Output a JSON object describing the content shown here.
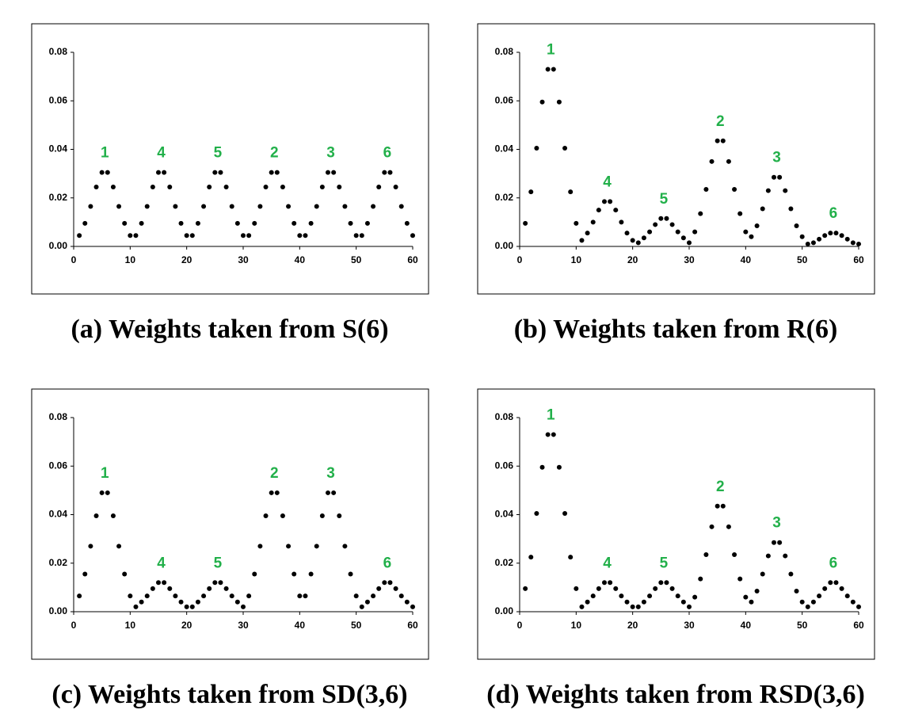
{
  "chart_data": [
    {
      "type": "scatter",
      "title": "(a) Weights taken from S(6)",
      "x": [
        1,
        2,
        3,
        4,
        5,
        6,
        7,
        8,
        9,
        10,
        11,
        12,
        13,
        14,
        15,
        16,
        17,
        18,
        19,
        20,
        21,
        22,
        23,
        24,
        25,
        26,
        27,
        28,
        29,
        30,
        31,
        32,
        33,
        34,
        35,
        36,
        37,
        38,
        39,
        40,
        41,
        42,
        43,
        44,
        45,
        46,
        47,
        48,
        49,
        50,
        51,
        52,
        53,
        54,
        55,
        56,
        57,
        58,
        59,
        60
      ],
      "values": [
        0.0045,
        0.0095,
        0.0165,
        0.0245,
        0.0305,
        0.0305,
        0.0245,
        0.0165,
        0.0095,
        0.0045,
        0.0045,
        0.0095,
        0.0165,
        0.0245,
        0.0305,
        0.0305,
        0.0245,
        0.0165,
        0.0095,
        0.0045,
        0.0045,
        0.0095,
        0.0165,
        0.0245,
        0.0305,
        0.0305,
        0.0245,
        0.0165,
        0.0095,
        0.0045,
        0.0045,
        0.0095,
        0.0165,
        0.0245,
        0.0305,
        0.0305,
        0.0245,
        0.0165,
        0.0095,
        0.0045,
        0.0045,
        0.0095,
        0.0165,
        0.0245,
        0.0305,
        0.0305,
        0.0245,
        0.0165,
        0.0095,
        0.0045,
        0.0045,
        0.0095,
        0.0165,
        0.0245,
        0.0305,
        0.0305,
        0.0245,
        0.0165,
        0.0095,
        0.0045
      ],
      "color": "#000000",
      "annotations": [
        "1",
        "4",
        "5",
        "2",
        "3",
        "6"
      ],
      "annotation_color": "#22b04a",
      "xlim": [
        0,
        60
      ],
      "xticks": [
        0,
        10,
        20,
        30,
        40,
        50,
        60
      ],
      "ylim": [
        0,
        0.08
      ],
      "yticks": [
        {
          "value": 0,
          "label": "0.00"
        },
        0.02,
        0.04,
        0.06,
        0.08
      ]
    },
    {
      "type": "scatter",
      "title": "(b) Weights taken from R(6)",
      "x": [
        1,
        2,
        3,
        4,
        5,
        6,
        7,
        8,
        9,
        10,
        11,
        12,
        13,
        14,
        15,
        16,
        17,
        18,
        19,
        20,
        21,
        22,
        23,
        24,
        25,
        26,
        27,
        28,
        29,
        30,
        31,
        32,
        33,
        34,
        35,
        36,
        37,
        38,
        39,
        40,
        41,
        42,
        43,
        44,
        45,
        46,
        47,
        48,
        49,
        50,
        51,
        52,
        53,
        54,
        55,
        56,
        57,
        58,
        59,
        60
      ],
      "values": [
        0.0095,
        0.0225,
        0.0405,
        0.0595,
        0.073,
        0.073,
        0.0595,
        0.0405,
        0.0225,
        0.0095,
        0.0025,
        0.0055,
        0.01,
        0.015,
        0.0185,
        0.0185,
        0.015,
        0.01,
        0.0055,
        0.0025,
        0.0015,
        0.0035,
        0.006,
        0.009,
        0.0115,
        0.0115,
        0.009,
        0.006,
        0.0035,
        0.0015,
        0.006,
        0.0135,
        0.0235,
        0.035,
        0.0435,
        0.0435,
        0.035,
        0.0235,
        0.0135,
        0.006,
        0.004,
        0.0085,
        0.0155,
        0.023,
        0.0285,
        0.0285,
        0.023,
        0.0155,
        0.0085,
        0.004,
        0.001,
        0.0015,
        0.003,
        0.0045,
        0.0055,
        0.0055,
        0.0045,
        0.003,
        0.0015,
        0.001
      ],
      "color": "#000000",
      "annotations": [
        "1",
        "4",
        "5",
        "2",
        "3",
        "6"
      ],
      "annotation_color": "#22b04a",
      "xlim": [
        0,
        60
      ],
      "xticks": [
        0,
        10,
        20,
        30,
        40,
        50,
        60
      ],
      "ylim": [
        0,
        0.08
      ],
      "yticks": [
        {
          "value": 0,
          "label": "0.00"
        },
        0.02,
        0.04,
        0.06,
        0.08
      ]
    },
    {
      "type": "scatter",
      "title": "(c) Weights taken from SD(3,6)",
      "x": [
        1,
        2,
        3,
        4,
        5,
        6,
        7,
        8,
        9,
        10,
        11,
        12,
        13,
        14,
        15,
        16,
        17,
        18,
        19,
        20,
        21,
        22,
        23,
        24,
        25,
        26,
        27,
        28,
        29,
        30,
        31,
        32,
        33,
        34,
        35,
        36,
        37,
        38,
        39,
        40,
        41,
        42,
        43,
        44,
        45,
        46,
        47,
        48,
        49,
        50,
        51,
        52,
        53,
        54,
        55,
        56,
        57,
        58,
        59,
        60
      ],
      "values": [
        0.0065,
        0.0155,
        0.027,
        0.0395,
        0.049,
        0.049,
        0.0395,
        0.027,
        0.0155,
        0.0065,
        0.002,
        0.004,
        0.0065,
        0.0095,
        0.012,
        0.012,
        0.0095,
        0.0065,
        0.004,
        0.002,
        0.002,
        0.004,
        0.0065,
        0.0095,
        0.012,
        0.012,
        0.0095,
        0.0065,
        0.004,
        0.002,
        0.0065,
        0.0155,
        0.027,
        0.0395,
        0.049,
        0.049,
        0.0395,
        0.027,
        0.0155,
        0.0065,
        0.0065,
        0.0155,
        0.027,
        0.0395,
        0.049,
        0.049,
        0.0395,
        0.027,
        0.0155,
        0.0065,
        0.002,
        0.004,
        0.0065,
        0.0095,
        0.012,
        0.012,
        0.0095,
        0.0065,
        0.004,
        0.002
      ],
      "color": "#000000",
      "annotations": [
        "1",
        "4",
        "5",
        "2",
        "3",
        "6"
      ],
      "annotation_color": "#22b04a",
      "xlim": [
        0,
        60
      ],
      "xticks": [
        0,
        10,
        20,
        30,
        40,
        50,
        60
      ],
      "ylim": [
        0,
        0.08
      ],
      "yticks": [
        {
          "value": 0,
          "label": "0.00"
        },
        0.02,
        0.04,
        0.06,
        0.08
      ]
    },
    {
      "type": "scatter",
      "title": "(d) Weights taken from RSD(3,6)",
      "x": [
        1,
        2,
        3,
        4,
        5,
        6,
        7,
        8,
        9,
        10,
        11,
        12,
        13,
        14,
        15,
        16,
        17,
        18,
        19,
        20,
        21,
        22,
        23,
        24,
        25,
        26,
        27,
        28,
        29,
        30,
        31,
        32,
        33,
        34,
        35,
        36,
        37,
        38,
        39,
        40,
        41,
        42,
        43,
        44,
        45,
        46,
        47,
        48,
        49,
        50,
        51,
        52,
        53,
        54,
        55,
        56,
        57,
        58,
        59,
        60
      ],
      "values": [
        0.0095,
        0.0225,
        0.0405,
        0.0595,
        0.073,
        0.073,
        0.0595,
        0.0405,
        0.0225,
        0.0095,
        0.002,
        0.004,
        0.0065,
        0.0095,
        0.012,
        0.012,
        0.0095,
        0.0065,
        0.004,
        0.002,
        0.002,
        0.004,
        0.0065,
        0.0095,
        0.012,
        0.012,
        0.0095,
        0.0065,
        0.004,
        0.002,
        0.006,
        0.0135,
        0.0235,
        0.035,
        0.0435,
        0.0435,
        0.035,
        0.0235,
        0.0135,
        0.006,
        0.004,
        0.0085,
        0.0155,
        0.023,
        0.0285,
        0.0285,
        0.023,
        0.0155,
        0.0085,
        0.004,
        0.002,
        0.004,
        0.0065,
        0.0095,
        0.012,
        0.012,
        0.0095,
        0.0065,
        0.004,
        0.002
      ],
      "color": "#000000",
      "annotations": [
        "1",
        "4",
        "5",
        "2",
        "3",
        "6"
      ],
      "annotation_color": "#22b04a",
      "xlim": [
        0,
        60
      ],
      "xticks": [
        0,
        10,
        20,
        30,
        40,
        50,
        60
      ],
      "ylim": [
        0,
        0.08
      ],
      "yticks": [
        {
          "value": 0,
          "label": "0.00"
        },
        0.02,
        0.04,
        0.06,
        0.08
      ]
    }
  ]
}
